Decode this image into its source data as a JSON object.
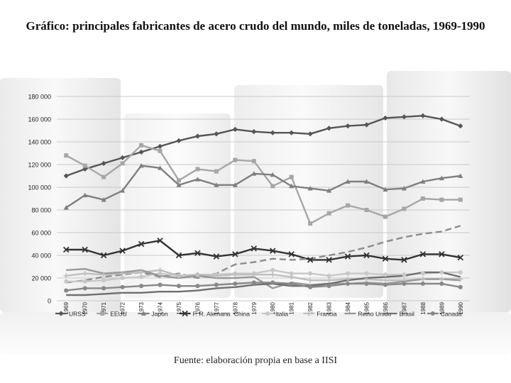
{
  "title": "Gráfico: principales fabricantes de acero crudo del mundo, miles de toneladas, 1969-1990",
  "source": "Fuente: elaboración propia en base a IISI",
  "chart_data": {
    "type": "line",
    "title": "Gráfico: principales fabricantes de acero crudo del mundo, miles de toneladas, 1969-1990",
    "xlabel": "",
    "ylabel": "",
    "x": [
      "1969",
      "1970",
      "1971",
      "1972",
      "1973",
      "1974",
      "1975",
      "1976",
      "1977",
      "1978",
      "1979",
      "1980",
      "1981",
      "1982",
      "1983",
      "1984",
      "1985",
      "1986",
      "1987",
      "1988",
      "1989",
      "1990"
    ],
    "ylim": [
      0,
      180000
    ],
    "yticks": [
      "0",
      "20 000",
      "40 000",
      "60 000",
      "80 000",
      "100 000",
      "120 000",
      "140 000",
      "160 000",
      "180 000"
    ],
    "grid": true,
    "legend_position": "bottom",
    "series": [
      {
        "name": "URSS",
        "color": "#555555",
        "marker": "diamond",
        "values": [
          110000,
          116000,
          121000,
          126000,
          131000,
          136000,
          141000,
          145000,
          147000,
          151000,
          149000,
          148000,
          148000,
          147000,
          152000,
          154000,
          155000,
          161000,
          162000,
          163000,
          160000,
          154000
        ]
      },
      {
        "name": "EEUU",
        "color": "#a6a6a6",
        "marker": "square",
        "values": [
          128000,
          119000,
          109000,
          121000,
          137000,
          132000,
          106000,
          116000,
          114000,
          124000,
          123000,
          101000,
          109000,
          68000,
          77000,
          84000,
          80000,
          74000,
          81000,
          90000,
          89000,
          89000
        ]
      },
      {
        "name": "Japón",
        "color": "#7f7f7f",
        "marker": "triangle",
        "values": [
          82000,
          93000,
          89000,
          97000,
          119000,
          117000,
          102000,
          107000,
          102000,
          102000,
          112000,
          111000,
          101000,
          99000,
          97000,
          105000,
          105000,
          98000,
          99000,
          105000,
          108000,
          110000
        ]
      },
      {
        "name": "F. R. Alemana",
        "color": "#333333",
        "marker": "x",
        "values": [
          45000,
          45000,
          40000,
          44000,
          50000,
          53000,
          40000,
          42000,
          39000,
          41000,
          46000,
          44000,
          41000,
          36000,
          36000,
          39000,
          40000,
          37000,
          36000,
          41000,
          41000,
          38000
        ]
      },
      {
        "name": "China",
        "color": "#8c8c8c",
        "marker": "none",
        "dash": true,
        "values": [
          16000,
          18000,
          21000,
          23000,
          25000,
          21000,
          24000,
          20000,
          24000,
          32000,
          34000,
          37000,
          36000,
          37000,
          40000,
          43000,
          47000,
          52000,
          56000,
          59000,
          61000,
          66000
        ]
      },
      {
        "name": "Italia",
        "color": "#c8c8c8",
        "marker": "circle",
        "values": [
          17000,
          17000,
          18000,
          20000,
          21000,
          24000,
          22000,
          23000,
          23000,
          24000,
          24000,
          27000,
          24000,
          24000,
          22000,
          24000,
          24000,
          23000,
          23000,
          24000,
          25000,
          25000
        ]
      },
      {
        "name": "Francia",
        "color": "#bfbfbf",
        "marker": "plus",
        "values": [
          22000,
          24000,
          23000,
          24000,
          25000,
          27000,
          22000,
          23000,
          22000,
          23000,
          23000,
          23000,
          21000,
          18000,
          18000,
          19000,
          19000,
          18000,
          18000,
          19000,
          19000,
          19000
        ]
      },
      {
        "name": "Reino Unido",
        "color": "#999999",
        "marker": "none",
        "values": [
          27000,
          28000,
          24000,
          25000,
          27000,
          22000,
          20000,
          22000,
          20000,
          20000,
          21000,
          11000,
          16000,
          14000,
          15000,
          15000,
          16000,
          15000,
          17000,
          19000,
          19000,
          18000
        ]
      },
      {
        "name": "Brasil",
        "color": "#6f6f6f",
        "marker": "none",
        "values": [
          5000,
          5000,
          6000,
          7000,
          7000,
          8000,
          8000,
          9000,
          11000,
          12000,
          14000,
          15000,
          13000,
          13000,
          15000,
          18000,
          20000,
          21000,
          22000,
          25000,
          25000,
          21000
        ]
      },
      {
        "name": "Canadá",
        "color": "#888888",
        "marker": "circle",
        "values": [
          9000,
          11000,
          11000,
          12000,
          13000,
          14000,
          13000,
          13000,
          14000,
          15000,
          16000,
          16000,
          15000,
          12000,
          13000,
          15000,
          15000,
          14000,
          15000,
          15000,
          15000,
          12000
        ]
      }
    ]
  }
}
